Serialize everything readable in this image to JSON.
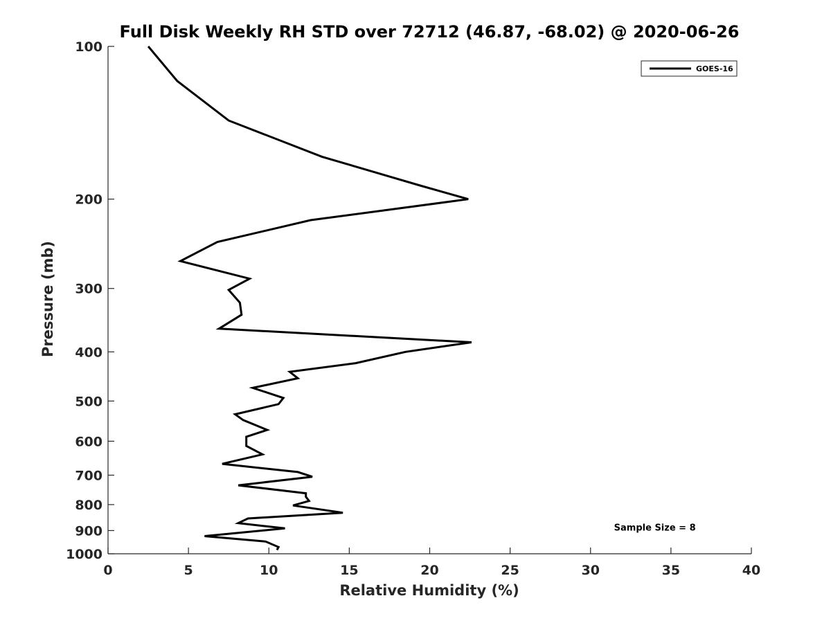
{
  "chart_data": {
    "type": "line",
    "title": "Full Disk Weekly RH STD over 72712 (46.87, -68.02) @ 2020-06-26",
    "xlabel": "Relative Humidity (%)",
    "ylabel": "Pressure (mb)",
    "xlim": [
      0,
      40
    ],
    "ylim": [
      100,
      1000
    ],
    "yscale": "log",
    "y_reversed": true,
    "grid": false,
    "x_ticks": [
      0,
      5,
      10,
      15,
      20,
      25,
      30,
      35,
      40
    ],
    "x_tick_labels": [
      "0",
      "5",
      "10",
      "15",
      "20",
      "25",
      "30",
      "35",
      "40"
    ],
    "y_ticks": [
      100,
      200,
      300,
      400,
      500,
      600,
      700,
      800,
      900,
      1000
    ],
    "y_tick_labels": [
      "100",
      "200",
      "300",
      "400",
      "500",
      "600",
      "700",
      "800",
      "900",
      "1000"
    ],
    "legend_position": "top-right",
    "series": [
      {
        "name": "GOES-16",
        "color": "#000000",
        "x": [
          2.5,
          4.3,
          7.5,
          13.3,
          19.4,
          22.4,
          12.6,
          6.8,
          4.5,
          8.8,
          7.5,
          8.2,
          8.3,
          6.9,
          22.6,
          18.5,
          15.4,
          11.3,
          11.8,
          9.0,
          10.9,
          10.6,
          7.9,
          8.4,
          9.9,
          8.6,
          8.6,
          9.6,
          7.1,
          11.8,
          12.7,
          8.1,
          12.3,
          12.3,
          12.5,
          11.5,
          14.6,
          8.7,
          8.1,
          11.0,
          6.0,
          9.8,
          10.6,
          10.5
        ],
        "y": [
          100,
          117,
          140,
          165,
          188,
          200,
          220,
          243,
          265,
          287,
          302,
          320,
          338,
          360,
          383,
          400,
          421,
          438,
          451,
          471,
          493,
          507,
          531,
          545,
          570,
          588,
          613,
          637,
          665,
          690,
          705,
          733,
          760,
          772,
          787,
          803,
          830,
          852,
          870,
          891,
          923,
          946,
          970,
          983
        ]
      }
    ],
    "legend": [
      "GOES-16"
    ],
    "annotations": [
      {
        "text": "Sample Size = 8",
        "x": 34,
        "y": 900
      }
    ]
  }
}
